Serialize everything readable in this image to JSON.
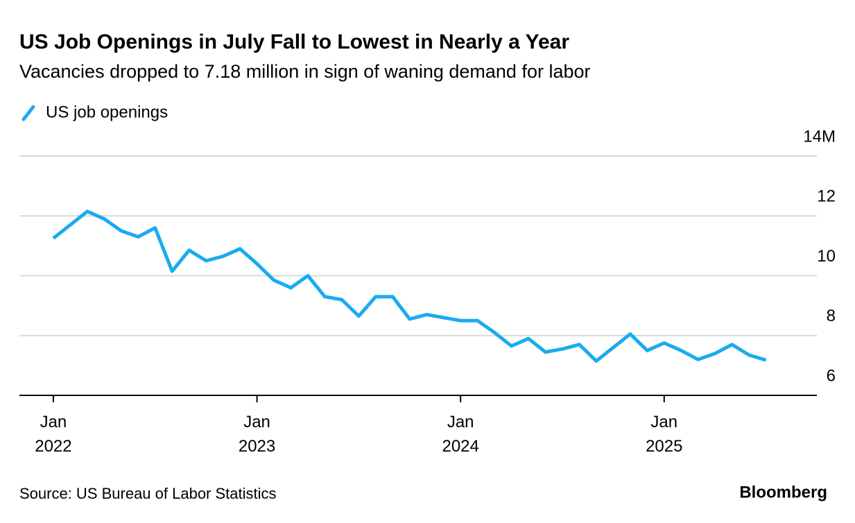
{
  "chart_data": {
    "type": "line",
    "title": "US Job Openings in July Fall to Lowest in Nearly a Year",
    "subtitle": "Vacancies dropped to 7.18 million in sign of waning demand for labor",
    "source": "Source: US Bureau of Labor Statistics",
    "brand": "Bloomberg",
    "x": [
      "2022-01",
      "2022-02",
      "2022-03",
      "2022-04",
      "2022-05",
      "2022-06",
      "2022-07",
      "2022-08",
      "2022-09",
      "2022-10",
      "2022-11",
      "2022-12",
      "2023-01",
      "2023-02",
      "2023-03",
      "2023-04",
      "2023-05",
      "2023-06",
      "2023-07",
      "2023-08",
      "2023-09",
      "2023-10",
      "2023-11",
      "2023-12",
      "2024-01",
      "2024-02",
      "2024-03",
      "2024-04",
      "2024-05",
      "2024-06",
      "2024-07",
      "2024-08",
      "2024-09",
      "2024-10",
      "2024-11",
      "2024-12",
      "2025-01",
      "2025-02",
      "2025-03",
      "2025-04",
      "2025-05",
      "2025-06",
      "2025-07"
    ],
    "series": [
      {
        "name": "US job openings",
        "color": "#1aabf0",
        "values": [
          11.25,
          11.7,
          12.15,
          11.9,
          11.5,
          11.3,
          11.6,
          10.15,
          10.85,
          10.5,
          10.65,
          10.9,
          10.4,
          9.85,
          9.6,
          10.0,
          9.3,
          9.2,
          8.65,
          9.3,
          9.3,
          8.55,
          8.7,
          8.6,
          8.5,
          8.5,
          8.1,
          7.65,
          7.9,
          7.45,
          7.55,
          7.7,
          7.15,
          7.6,
          8.05,
          7.5,
          7.75,
          7.5,
          7.2,
          7.4,
          7.7,
          7.35,
          7.18
        ]
      }
    ],
    "xlim": [
      "2021-11",
      "2025-10"
    ],
    "xticks": [
      {
        "value": "2022-01",
        "label": "Jan 2022"
      },
      {
        "value": "2023-01",
        "label": "Jan 2023"
      },
      {
        "value": "2024-01",
        "label": "Jan 2024"
      },
      {
        "value": "2025-01",
        "label": "Jan 2025"
      }
    ],
    "ylim": [
      6,
      14
    ],
    "yticks": [
      6,
      8,
      10,
      12,
      {
        "value": 14,
        "label": "14M"
      }
    ],
    "grid": true,
    "legend": "top-left"
  }
}
